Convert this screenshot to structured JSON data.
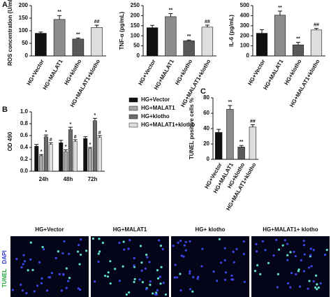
{
  "chart_data": [
    {
      "type": "bar",
      "panel": "A",
      "ylabel": "ROS concentration (U/mL)",
      "categories": [
        "HG+Vector",
        "HG+MALAT1",
        "HG+klotho",
        "HG+MALAT1+klotho"
      ],
      "values": [
        90,
        145,
        67,
        113
      ],
      "errors": [
        5,
        15,
        4,
        9
      ],
      "colors": [
        "#111111",
        "#8c8c8c",
        "#595959",
        "#dedede"
      ],
      "annotations": [
        "**",
        "**",
        "##"
      ],
      "annotated_bars": [
        1,
        2,
        3
      ],
      "ylim": [
        0,
        200
      ],
      "yticks": [
        0,
        50,
        100,
        150,
        200
      ]
    },
    {
      "type": "bar",
      "ylabel": "TNF-α (pg/mL)",
      "categories": [
        "HG+Vector",
        "HG+MALAT1",
        "HG+klotho",
        "HG+MALAT1+klotho"
      ],
      "values": [
        140,
        195,
        75,
        143
      ],
      "errors": [
        12,
        15,
        4,
        10
      ],
      "colors": [
        "#111111",
        "#8c8c8c",
        "#595959",
        "#dedede"
      ],
      "annotations": [
        "**",
        "**",
        "##"
      ],
      "annotated_bars": [
        1,
        2,
        3
      ],
      "ylim": [
        0,
        250
      ],
      "yticks": [
        0,
        50,
        100,
        150,
        200,
        250
      ]
    },
    {
      "type": "bar",
      "ylabel": "IL-6 (pg/mL)",
      "categories": [
        "HG+Vector",
        "HG+MALAT1",
        "HG+klotho",
        "HG+MALAT1+klotho"
      ],
      "values": [
        225,
        405,
        110,
        258
      ],
      "errors": [
        35,
        40,
        25,
        15
      ],
      "colors": [
        "#111111",
        "#8c8c8c",
        "#595959",
        "#dedede"
      ],
      "annotations": [
        "**",
        "**",
        "##"
      ],
      "annotated_bars": [
        1,
        2,
        3
      ],
      "ylim": [
        0,
        500
      ],
      "yticks": [
        0,
        100,
        200,
        300,
        400,
        500
      ]
    },
    {
      "type": "grouped_bar",
      "panel": "B",
      "ylabel": "OD 490",
      "categories": [
        "24h",
        "48h",
        "72h"
      ],
      "series": [
        {
          "name": "HG+Vector",
          "color": "#111111",
          "values": [
            0.42,
            0.48,
            0.55
          ],
          "errors": [
            0.03,
            0.04,
            0.03
          ]
        },
        {
          "name": "HG+MALAT1",
          "color": "#a6a6a6",
          "values": [
            0.26,
            0.33,
            0.38
          ],
          "errors": [
            0.02,
            0.03,
            0.02
          ],
          "annotations": [
            "*",
            "*",
            "*"
          ]
        },
        {
          "name": "HG+klotho",
          "color": "#6b6b6b",
          "values": [
            0.58,
            0.7,
            0.85
          ],
          "errors": [
            0.03,
            0.04,
            0.04
          ],
          "annotations": [
            "*",
            "*",
            "*"
          ]
        },
        {
          "name": "HG+MALAT1+klotho",
          "color": "#dedede",
          "values": [
            0.45,
            0.5,
            0.57
          ],
          "errors": [
            0.03,
            0.03,
            0.03
          ],
          "annotations": [
            "#",
            "#",
            "#"
          ]
        }
      ],
      "ylim": [
        0,
        1.0
      ],
      "yticks": [
        {
          "value": 0,
          "label": "0.0"
        },
        {
          "value": 0.2,
          "label": "0.2"
        },
        {
          "value": 0.4,
          "label": "0.4"
        },
        {
          "value": 0.6,
          "label": "0.6"
        },
        {
          "value": 0.8,
          "label": "0.8"
        },
        {
          "value": 1.0,
          "label": "1.0"
        }
      ]
    },
    {
      "type": "bar",
      "panel": "C",
      "ylabel": "TUNEL positive cells %",
      "categories": [
        "HG+Vector",
        "HG+MALAT1",
        "HG+klotho",
        "HG+MALAT1+klotho"
      ],
      "values": [
        35,
        65,
        16,
        42
      ],
      "errors": [
        4,
        5,
        2,
        3
      ],
      "colors": [
        "#111111",
        "#8c8c8c",
        "#595959",
        "#dedede"
      ],
      "annotations": [
        "**",
        "**",
        "##"
      ],
      "annotated_bars": [
        1,
        2,
        3
      ],
      "ylim": [
        0,
        80
      ],
      "yticks": [
        0,
        20,
        40,
        60,
        80
      ]
    }
  ],
  "image_panel": {
    "labels": [
      "HG+Vector",
      "HG+MALAT1",
      "HG+ klotho",
      "HG+MALAT1+ klotho"
    ],
    "stain_labels": [
      "TUNEL",
      "DAPI"
    ]
  }
}
